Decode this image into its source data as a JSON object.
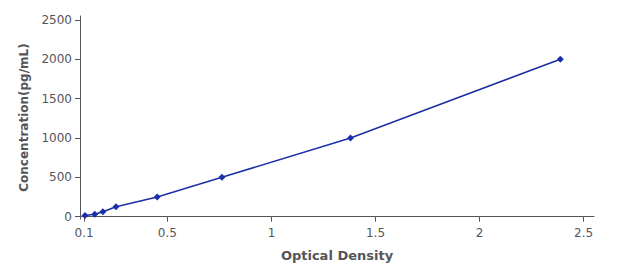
{
  "chart_data": {
    "type": "line",
    "x": [
      0.104,
      0.151,
      0.19,
      0.253,
      0.451,
      0.762,
      1.38,
      2.388
    ],
    "values": [
      15.625,
      31.25,
      62.5,
      125,
      250,
      500,
      1000,
      2000
    ],
    "color": "#1B2FA8",
    "marker": "diamond",
    "xlabel": "Optical Density",
    "ylabel": "Concentration(pg/mL)",
    "xlim": [
      0.08,
      2.55
    ],
    "ylim": [
      -30,
      2550
    ],
    "xticks": [
      0.1,
      0.5,
      1,
      1.5,
      2,
      2.5
    ],
    "yticks": [
      0,
      500,
      1000,
      1500,
      2000,
      2500
    ],
    "grid": false
  }
}
